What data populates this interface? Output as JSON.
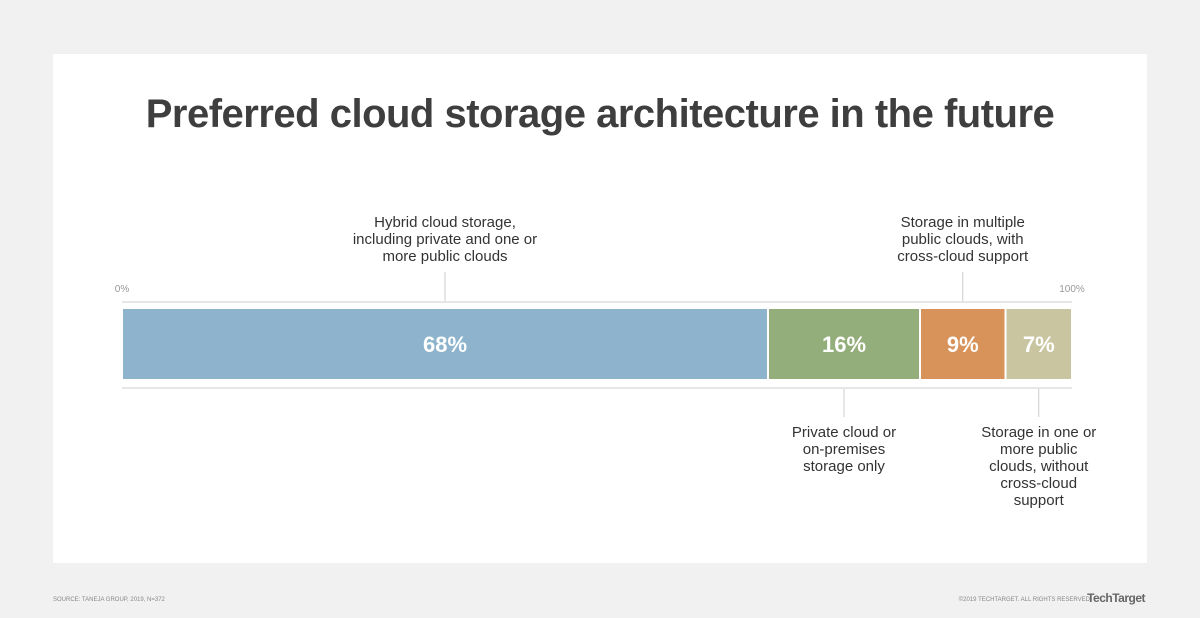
{
  "chart_data": {
    "type": "stacked-bar",
    "title": "Preferred cloud storage architecture in the future",
    "categories": [
      "Hybrid cloud storage, including private and one or more public clouds",
      "Private cloud or on-premises storage only",
      "Storage in multiple public clouds, with cross-cloud support",
      "Storage in one or more public clouds, without cross-cloud support"
    ],
    "values": [
      68,
      16,
      9,
      7
    ],
    "value_labels": [
      "68%",
      "16%",
      "9%",
      "7%"
    ],
    "colors": [
      "#8db4cc",
      "#93ae7a",
      "#d8935a",
      "#c9c5a0"
    ],
    "xlim": [
      0,
      100
    ],
    "xticks": [
      {
        "value": 0,
        "label": "0%"
      },
      {
        "value": 100,
        "label": "100%"
      }
    ]
  },
  "footer": {
    "source": "SOURCE: TANEJA GROUP, 2019, N=372",
    "copyright": "©2019 TECHTARGET. ALL RIGHTS RESERVED",
    "logo": "TechTarget"
  }
}
